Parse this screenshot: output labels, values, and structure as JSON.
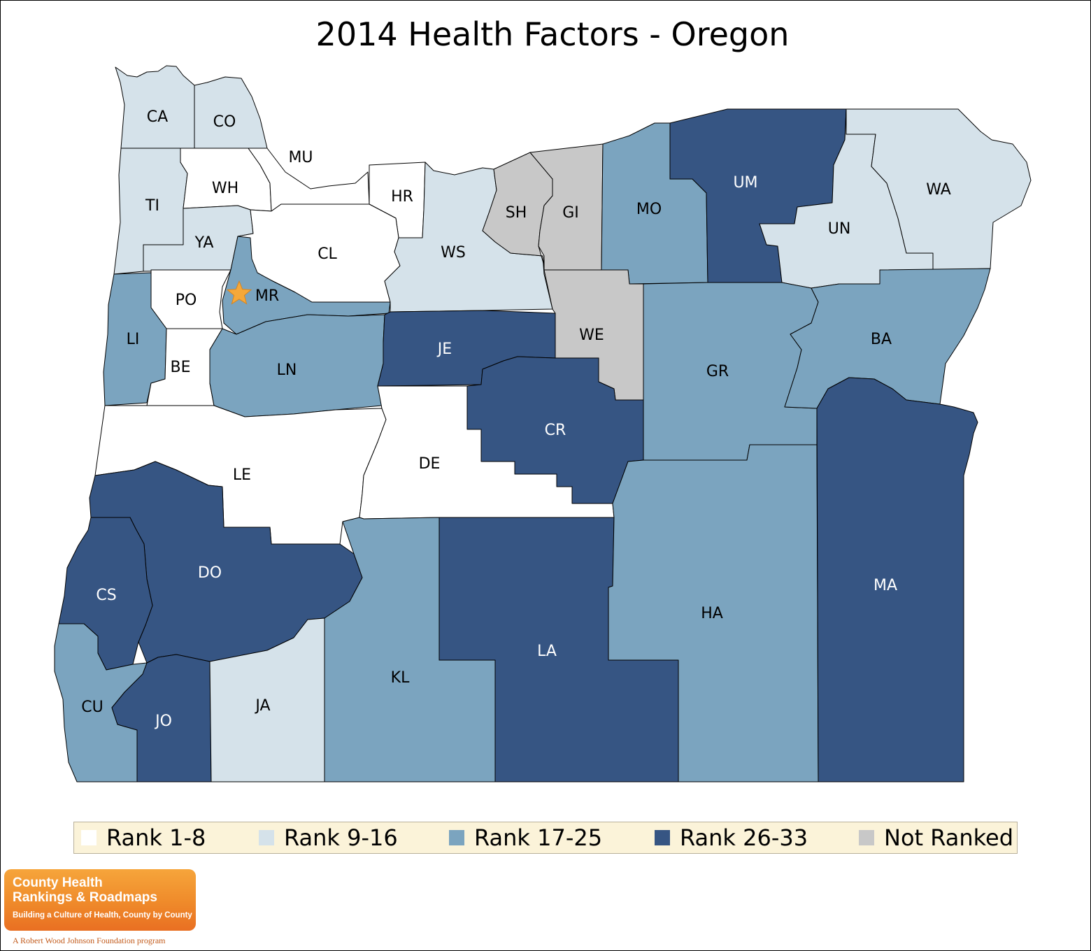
{
  "title": "2014 Health Factors - Oregon",
  "colors": {
    "rank_1_8": "#ffffff",
    "rank_9_16": "#d5e2ea",
    "rank_17_25": "#7ba4bf",
    "rank_26_33": "#365583",
    "not_ranked": "#c8c8c8",
    "star": "#f5a83a"
  },
  "legend": [
    {
      "key": "rank_1_8",
      "label": "Rank 1-8"
    },
    {
      "key": "rank_9_16",
      "label": "Rank 9-16"
    },
    {
      "key": "rank_17_25",
      "label": "Rank 17-25"
    },
    {
      "key": "rank_26_33",
      "label": "Rank 26-33"
    },
    {
      "key": "not_ranked",
      "label": "Not Ranked"
    }
  ],
  "counties": [
    {
      "abbr": "CA",
      "category": "rank_9_16"
    },
    {
      "abbr": "CO",
      "category": "rank_9_16"
    },
    {
      "abbr": "TI",
      "category": "rank_9_16"
    },
    {
      "abbr": "WH",
      "category": "rank_1_8"
    },
    {
      "abbr": "MU",
      "category": "rank_1_8"
    },
    {
      "abbr": "YA",
      "category": "rank_9_16"
    },
    {
      "abbr": "HR",
      "category": "rank_1_8"
    },
    {
      "abbr": "CL",
      "category": "rank_1_8"
    },
    {
      "abbr": "PO",
      "category": "rank_1_8"
    },
    {
      "abbr": "MR",
      "category": "rank_17_25"
    },
    {
      "abbr": "LI",
      "category": "rank_17_25"
    },
    {
      "abbr": "BE",
      "category": "rank_1_8"
    },
    {
      "abbr": "LN",
      "category": "rank_17_25"
    },
    {
      "abbr": "WS",
      "category": "rank_9_16"
    },
    {
      "abbr": "SH",
      "category": "not_ranked"
    },
    {
      "abbr": "GI",
      "category": "not_ranked"
    },
    {
      "abbr": "MO",
      "category": "rank_17_25"
    },
    {
      "abbr": "UM",
      "category": "rank_26_33"
    },
    {
      "abbr": "UN",
      "category": "rank_9_16"
    },
    {
      "abbr": "WA",
      "category": "rank_9_16"
    },
    {
      "abbr": "WE",
      "category": "not_ranked"
    },
    {
      "abbr": "JE",
      "category": "rank_26_33"
    },
    {
      "abbr": "CR",
      "category": "rank_26_33"
    },
    {
      "abbr": "GR",
      "category": "rank_17_25"
    },
    {
      "abbr": "BA",
      "category": "rank_17_25"
    },
    {
      "abbr": "LE",
      "category": "rank_1_8"
    },
    {
      "abbr": "DE",
      "category": "rank_1_8"
    },
    {
      "abbr": "DO",
      "category": "rank_26_33"
    },
    {
      "abbr": "CS",
      "category": "rank_26_33"
    },
    {
      "abbr": "CU",
      "category": "rank_17_25"
    },
    {
      "abbr": "JO",
      "category": "rank_26_33"
    },
    {
      "abbr": "JA",
      "category": "rank_9_16"
    },
    {
      "abbr": "KL",
      "category": "rank_17_25"
    },
    {
      "abbr": "LA",
      "category": "rank_26_33"
    },
    {
      "abbr": "HA",
      "category": "rank_17_25"
    },
    {
      "abbr": "MA",
      "category": "rank_26_33"
    }
  ],
  "capital_marker": {
    "county": "MR",
    "icon": "star-icon"
  },
  "logo": {
    "line1": "County Health",
    "line2": "Rankings & Roadmaps",
    "tagline": "Building a Culture of Health, County by County"
  },
  "footer_credit": "A Robert Wood Johnson Foundation program"
}
